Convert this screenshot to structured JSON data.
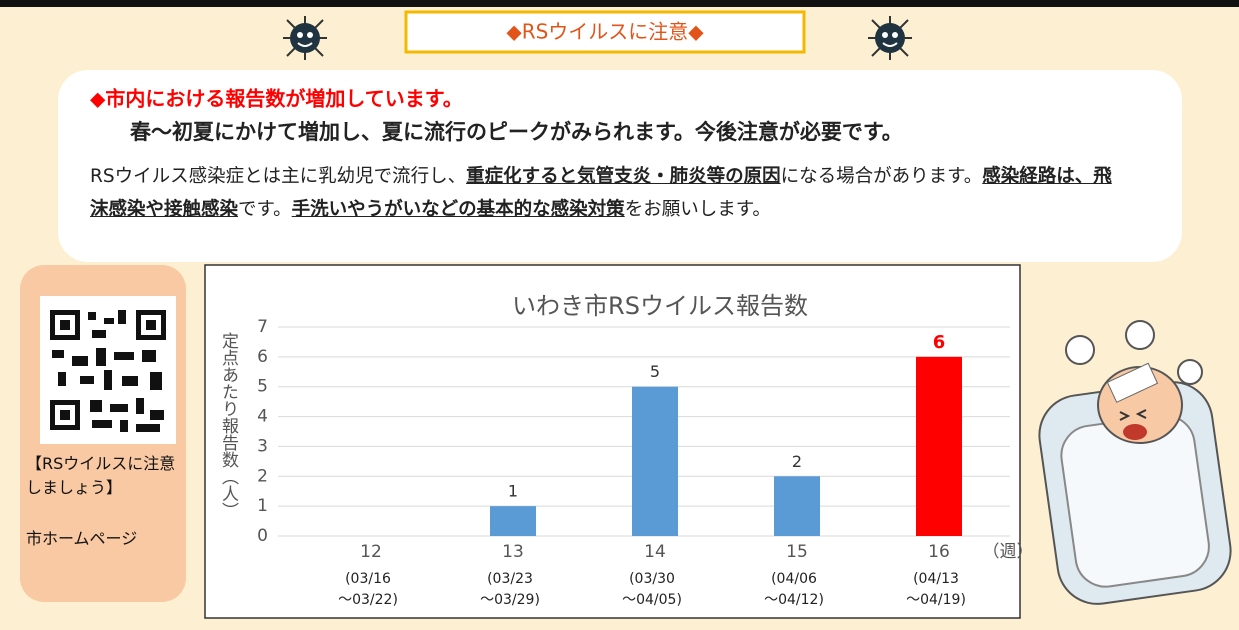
{
  "header": {
    "title": "◆RSウイルスに注意◆"
  },
  "notice": {
    "heading": "◆市内における報告数が増加しています。",
    "subheading": "春～初夏にかけて増加し、夏に流行のピークがみられます。今後注意が必要です。",
    "paragraph": [
      {
        "text": "RSウイルス感染症とは主に乳幼児で流行し、",
        "emphasis": false
      },
      {
        "text": "重症化すると気管支炎・肺炎等の原因",
        "emphasis": true
      },
      {
        "text": "になる場合があります。",
        "emphasis": false
      },
      {
        "text": "感染経路は、飛沫感染や接触感染",
        "emphasis": true
      },
      {
        "text": "です。",
        "emphasis": false
      },
      {
        "text": "手洗いやうがいなどの基本的な感染対策",
        "emphasis": true
      },
      {
        "text": "をお願いします。",
        "emphasis": false
      }
    ]
  },
  "qr_panel": {
    "caption": "【RSウイルスに注意しましょう】",
    "link_text": "市ホームページ"
  },
  "chart_data": {
    "type": "bar",
    "title": "いわき市RSウイルス報告数",
    "y_label": "定点あたり報告数（人）",
    "x_unit": "（週）",
    "categories": [
      "12",
      "13",
      "14",
      "15",
      "16"
    ],
    "date_ranges": [
      [
        "(03/16",
        "～03/22)"
      ],
      [
        "(03/23",
        "～03/29)"
      ],
      [
        "(03/30",
        "～04/05)"
      ],
      [
        "(04/06",
        "～04/12)"
      ],
      [
        "(04/13",
        "～04/19)"
      ]
    ],
    "values": [
      0,
      1,
      5,
      2,
      6
    ],
    "value_labels": [
      null,
      "1",
      "5",
      "2",
      "6"
    ],
    "colors": [
      "#5b9bd5",
      "#5b9bd5",
      "#5b9bd5",
      "#5b9bd5",
      "#ff0000"
    ],
    "ylim": [
      0,
      7
    ],
    "yticks": [
      0,
      1,
      2,
      3,
      4,
      5,
      6,
      7
    ],
    "grid": true
  }
}
